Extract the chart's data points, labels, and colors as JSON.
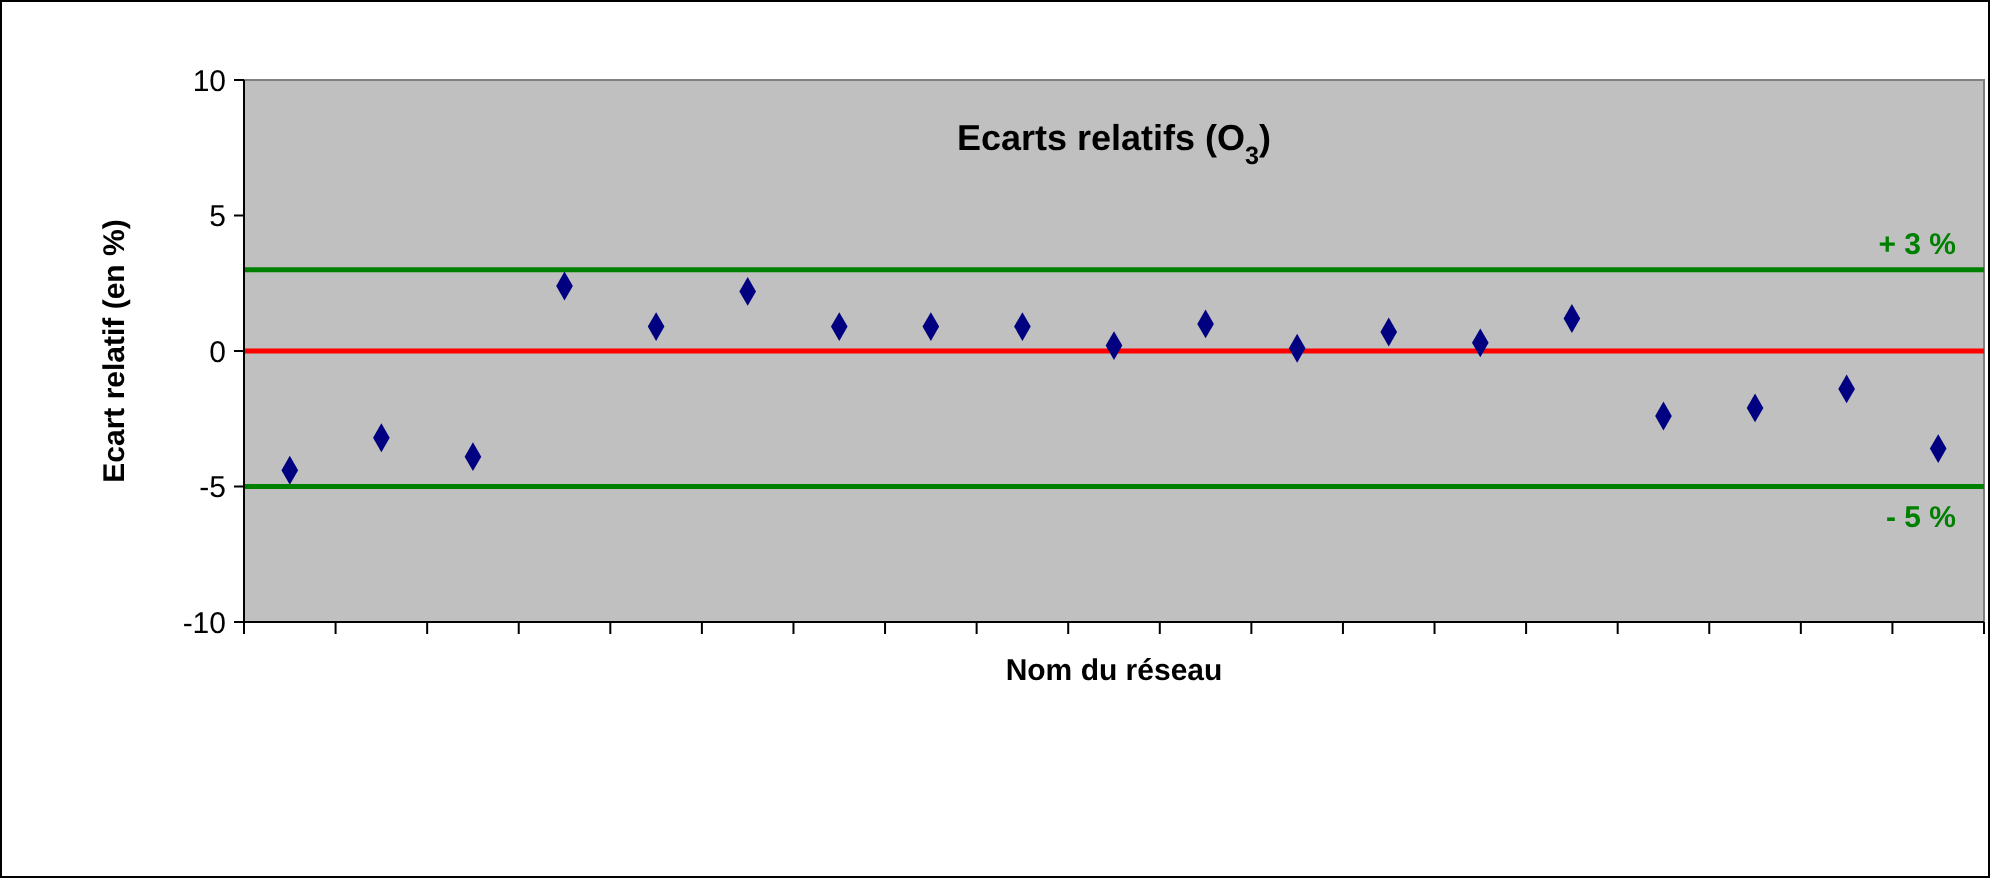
{
  "chart_data": {
    "type": "scatter",
    "title": "Ecarts relatifs (O$_{3}$)",
    "xlabel": "Nom du réseau",
    "ylabel": "Ecart relatif (en %)",
    "categories": [
      null,
      null,
      null,
      null,
      null,
      null,
      null,
      null,
      null,
      null,
      null,
      null,
      null,
      null,
      null,
      null,
      null,
      null,
      null
    ],
    "series": [
      {
        "color": "#000080",
        "values": [
          -4.4,
          -3.2,
          -3.9,
          2.4,
          0.9,
          2.2,
          0.9,
          0.9,
          0.9,
          0.2,
          1.0,
          0.1,
          0.7,
          0.3,
          1.2,
          -2.4,
          -2.1,
          -1.4,
          -3.6
        ]
      }
    ],
    "marker": "diamond",
    "ylim": [
      -10,
      10
    ],
    "yticks": [
      -10,
      -5,
      0,
      5,
      10
    ],
    "grid": false,
    "ref_lines": [
      {
        "axis": "y",
        "value": 3,
        "label": "+ 3 %",
        "color": "#008000"
      },
      {
        "axis": "y",
        "value": 0,
        "color": "#ff0000"
      },
      {
        "axis": "y",
        "value": -5,
        "label": "- 5 %",
        "color": "#008000"
      }
    ]
  }
}
